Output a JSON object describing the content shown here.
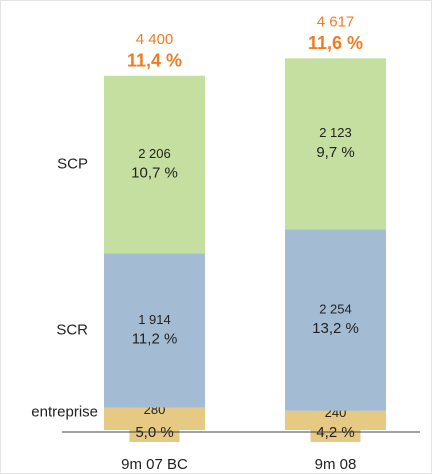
{
  "chart_data": {
    "type": "stacked-bar",
    "categories": [
      "9m 07 BC",
      "9m 08"
    ],
    "series": [
      {
        "name": "entreprise",
        "color": "#e6c983",
        "values": [
          280,
          240
        ],
        "value_labels": [
          "280",
          "240"
        ],
        "rates": [
          5.0,
          4.2
        ],
        "rate_labels": [
          "5,0 %",
          "4,2 %"
        ]
      },
      {
        "name": "SCR",
        "color": "#a3bcd3",
        "values": [
          1914,
          2254
        ],
        "value_labels": [
          "1 914",
          "2 254"
        ],
        "rates": [
          11.2,
          13.2
        ],
        "rate_labels": [
          "11,2 %",
          "13,2 %"
        ]
      },
      {
        "name": "SCP",
        "color": "#c5dfa0",
        "values": [
          2206,
          2123
        ],
        "value_labels": [
          "2 206",
          "2 123"
        ],
        "rates": [
          10.7,
          9.7
        ],
        "rate_labels": [
          "10,7 %",
          "9,7 %"
        ]
      }
    ],
    "totals": [
      4400,
      4617
    ],
    "total_labels": [
      "4 400",
      "4 617"
    ],
    "total_rates": [
      11.4,
      11.6
    ],
    "total_rate_labels": [
      "11,4 %",
      "11,6 %"
    ]
  }
}
